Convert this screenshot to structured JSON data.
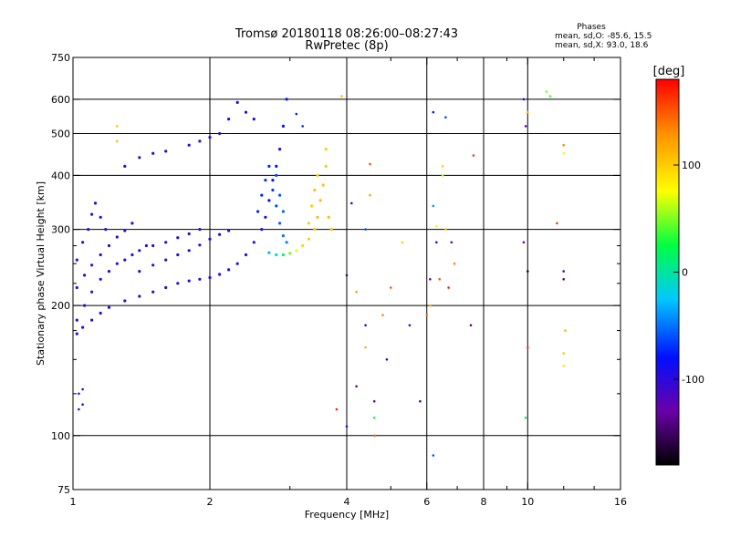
{
  "chart_data": {
    "type": "scatter",
    "title": "Tromsø 20180118 08:26:00–08:27:43",
    "subtitle": "RwPretec (8p)",
    "stats": {
      "header": "Phases",
      "line1": "mean, sd,O: -85.6, 15.5",
      "line2": "mean, sd,X:  93.0, 18.6"
    },
    "xlabel": "Frequency [MHz]",
    "ylabel": "Stationary phase Virtual Height [km]",
    "x_scale": "log",
    "y_scale": "log",
    "xlim": [
      1,
      16
    ],
    "ylim": [
      75,
      750
    ],
    "x_ticks": [
      1,
      2,
      4,
      6,
      8,
      10,
      16
    ],
    "x_tick_labels": [
      "1",
      "2",
      "4",
      "6",
      "8",
      "10",
      "16"
    ],
    "x_minor_ticks": [
      3,
      5,
      7,
      9,
      12,
      14
    ],
    "y_ticks": [
      75,
      100,
      200,
      300,
      400,
      500,
      600,
      750
    ],
    "y_tick_labels": [
      "75",
      "100",
      "200",
      "300",
      "400",
      "500",
      "600",
      "750"
    ],
    "y_minor_ticks": [
      125,
      150,
      175,
      225,
      250,
      275
    ],
    "grid_x": [
      2,
      4,
      6,
      8,
      10
    ],
    "grid_y": [
      100,
      200,
      300,
      400,
      500,
      600
    ],
    "colorbar": {
      "label": "[deg]",
      "range": [
        -180,
        180
      ],
      "ticks": [
        100,
        0,
        -100
      ],
      "tick_labels": [
        "100",
        "0",
        "-100"
      ],
      "colors": [
        "#000000",
        "#6a00a8",
        "#0010ff",
        "#00c8ff",
        "#00ff40",
        "#ffff00",
        "#ff9000",
        "#ff0000"
      ]
    },
    "series": [
      {
        "traces": [
          [
            1.02,
            185,
            -95
          ],
          [
            1.06,
            200,
            -98
          ],
          [
            1.1,
            215,
            -96
          ],
          [
            1.15,
            230,
            -100
          ],
          [
            1.2,
            240,
            -97
          ],
          [
            1.25,
            250,
            -95
          ],
          [
            1.3,
            255,
            -99
          ],
          [
            1.35,
            262,
            -96
          ],
          [
            1.4,
            268,
            -98
          ],
          [
            1.45,
            275,
            -95
          ],
          [
            1.02,
            220,
            -94
          ],
          [
            1.06,
            235,
            -97
          ],
          [
            1.1,
            248,
            -99
          ],
          [
            1.15,
            262,
            -96
          ],
          [
            1.2,
            275,
            -98
          ],
          [
            1.25,
            288,
            -95
          ],
          [
            1.3,
            298,
            -97
          ],
          [
            1.35,
            310,
            -99
          ],
          [
            1.02,
            255,
            -96
          ],
          [
            1.05,
            280,
            -98
          ],
          [
            1.08,
            300,
            -94
          ],
          [
            1.1,
            325,
            -97
          ],
          [
            1.12,
            345,
            -99
          ],
          [
            1.15,
            320,
            -95
          ],
          [
            1.18,
            300,
            -97
          ],
          [
            1.02,
            172,
            -99
          ],
          [
            1.05,
            178,
            -96
          ],
          [
            1.1,
            185,
            -98
          ],
          [
            1.15,
            192,
            -95
          ],
          [
            1.2,
            198,
            -97
          ],
          [
            1.3,
            205,
            -96
          ],
          [
            1.4,
            210,
            -98
          ],
          [
            1.5,
            215,
            -95
          ],
          [
            1.6,
            220,
            -97
          ],
          [
            1.7,
            225,
            -99
          ],
          [
            1.8,
            228,
            -96
          ],
          [
            1.9,
            230,
            -98
          ],
          [
            2.0,
            232,
            -95
          ],
          [
            2.1,
            236,
            -97
          ],
          [
            2.2,
            242,
            -99
          ],
          [
            2.3,
            250,
            -96
          ],
          [
            2.4,
            262,
            -94
          ],
          [
            2.5,
            280,
            -90
          ],
          [
            2.6,
            300,
            -88
          ],
          [
            2.65,
            320,
            -85
          ],
          [
            2.7,
            350,
            -83
          ],
          [
            2.75,
            390,
            -80
          ],
          [
            2.8,
            420,
            -82
          ],
          [
            2.85,
            460,
            -84
          ],
          [
            2.9,
            520,
            -80
          ],
          [
            2.95,
            600,
            -78
          ],
          [
            1.4,
            240,
            -97
          ],
          [
            1.5,
            248,
            -95
          ],
          [
            1.6,
            255,
            -98
          ],
          [
            1.7,
            262,
            -96
          ],
          [
            1.8,
            268,
            -94
          ],
          [
            1.9,
            276,
            -97
          ],
          [
            2.0,
            285,
            -95
          ],
          [
            2.1,
            292,
            -92
          ],
          [
            2.2,
            298,
            -90
          ],
          [
            1.5,
            275,
            -96
          ],
          [
            1.6,
            280,
            -98
          ],
          [
            1.7,
            287,
            -95
          ],
          [
            1.8,
            293,
            -97
          ],
          [
            1.9,
            300,
            -94
          ],
          [
            2.55,
            330,
            -72
          ],
          [
            2.6,
            360,
            -70
          ],
          [
            2.65,
            390,
            -68
          ],
          [
            2.7,
            420,
            -72
          ],
          [
            2.75,
            370,
            -65
          ],
          [
            2.8,
            340,
            -60
          ],
          [
            2.85,
            310,
            -55
          ],
          [
            2.9,
            290,
            -50
          ],
          [
            2.95,
            280,
            -45
          ],
          [
            2.8,
            400,
            -62
          ],
          [
            2.85,
            360,
            -58
          ],
          [
            2.9,
            330,
            -52
          ],
          [
            2.7,
            265,
            -30
          ],
          [
            2.8,
            262,
            -10
          ],
          [
            2.9,
            262,
            20
          ],
          [
            3.0,
            264,
            50
          ],
          [
            3.1,
            268,
            80
          ],
          [
            3.2,
            275,
            95
          ],
          [
            3.3,
            285,
            100
          ],
          [
            3.4,
            300,
            105
          ],
          [
            3.45,
            320,
            110
          ],
          [
            3.5,
            350,
            108
          ],
          [
            3.55,
            380,
            104
          ],
          [
            3.6,
            420,
            100
          ],
          [
            3.6,
            460,
            98
          ],
          [
            3.65,
            320,
            106
          ],
          [
            3.7,
            300,
            102
          ],
          [
            3.3,
            310,
            96
          ],
          [
            3.35,
            340,
            100
          ],
          [
            3.4,
            370,
            104
          ],
          [
            3.45,
            400,
            98
          ],
          [
            1.3,
            420,
            -96
          ],
          [
            1.4,
            440,
            -98
          ],
          [
            1.5,
            450,
            -95
          ],
          [
            1.6,
            455,
            -97
          ],
          [
            1.8,
            470,
            -99
          ],
          [
            1.9,
            480,
            -94
          ],
          [
            2.0,
            490,
            -96
          ],
          [
            2.1,
            500,
            -98
          ],
          [
            2.2,
            540,
            -95
          ],
          [
            2.3,
            590,
            -97
          ],
          [
            2.4,
            560,
            -93
          ],
          [
            2.5,
            540,
            -90
          ]
        ],
        "scattered": [
          [
            1.03,
            125,
            -98
          ],
          [
            1.05,
            128,
            -95
          ],
          [
            1.03,
            115,
            -97
          ],
          [
            1.05,
            118,
            -99
          ],
          [
            1.25,
            520,
            105
          ],
          [
            1.25,
            480,
            110
          ],
          [
            3.1,
            555,
            -75
          ],
          [
            3.2,
            520,
            -70
          ],
          [
            3.9,
            610,
            110
          ],
          [
            4.1,
            345,
            -88
          ],
          [
            4.0,
            235,
            -150
          ],
          [
            4.2,
            215,
            120
          ],
          [
            4.2,
            130,
            -140
          ],
          [
            3.8,
            115,
            170
          ],
          [
            4.0,
            105,
            -100
          ],
          [
            4.4,
            180,
            -80
          ],
          [
            4.4,
            160,
            115
          ],
          [
            4.5,
            425,
            150
          ],
          [
            4.5,
            360,
            120
          ],
          [
            4.4,
            300,
            -60
          ],
          [
            4.6,
            120,
            -130
          ],
          [
            4.6,
            110,
            30
          ],
          [
            4.6,
            100,
            145
          ],
          [
            4.8,
            190,
            130
          ],
          [
            4.9,
            150,
            -140
          ],
          [
            5.0,
            220,
            150
          ],
          [
            5.3,
            280,
            100
          ],
          [
            5.5,
            180,
            -90
          ],
          [
            5.8,
            120,
            -140
          ],
          [
            6.0,
            190,
            140
          ],
          [
            6.1,
            200,
            120
          ],
          [
            6.1,
            230,
            -130
          ],
          [
            6.2,
            560,
            -80
          ],
          [
            6.2,
            340,
            -40
          ],
          [
            6.3,
            305,
            80
          ],
          [
            6.3,
            280,
            -100
          ],
          [
            6.4,
            230,
            150
          ],
          [
            6.5,
            420,
            100
          ],
          [
            6.5,
            400,
            60
          ],
          [
            6.6,
            545,
            -60
          ],
          [
            6.6,
            300,
            110
          ],
          [
            6.7,
            220,
            170
          ],
          [
            6.8,
            280,
            -120
          ],
          [
            6.9,
            250,
            130
          ],
          [
            6.2,
            90,
            -60
          ],
          [
            7.5,
            180,
            -140
          ],
          [
            7.6,
            445,
            160
          ],
          [
            9.8,
            600,
            -80
          ],
          [
            9.9,
            520,
            -130
          ],
          [
            10.0,
            560,
            110
          ],
          [
            9.8,
            280,
            -130
          ],
          [
            10.0,
            240,
            -160
          ],
          [
            10.0,
            160,
            160
          ],
          [
            9.9,
            110,
            20
          ],
          [
            11.0,
            625,
            50
          ],
          [
            11.2,
            610,
            40
          ],
          [
            11.6,
            310,
            160
          ],
          [
            12.0,
            470,
            130
          ],
          [
            12.0,
            450,
            80
          ],
          [
            12.0,
            240,
            -110
          ],
          [
            12.0,
            230,
            -140
          ],
          [
            12.1,
            175,
            110
          ],
          [
            12.0,
            155,
            100
          ],
          [
            12.0,
            145,
            90
          ]
        ]
      }
    ]
  }
}
